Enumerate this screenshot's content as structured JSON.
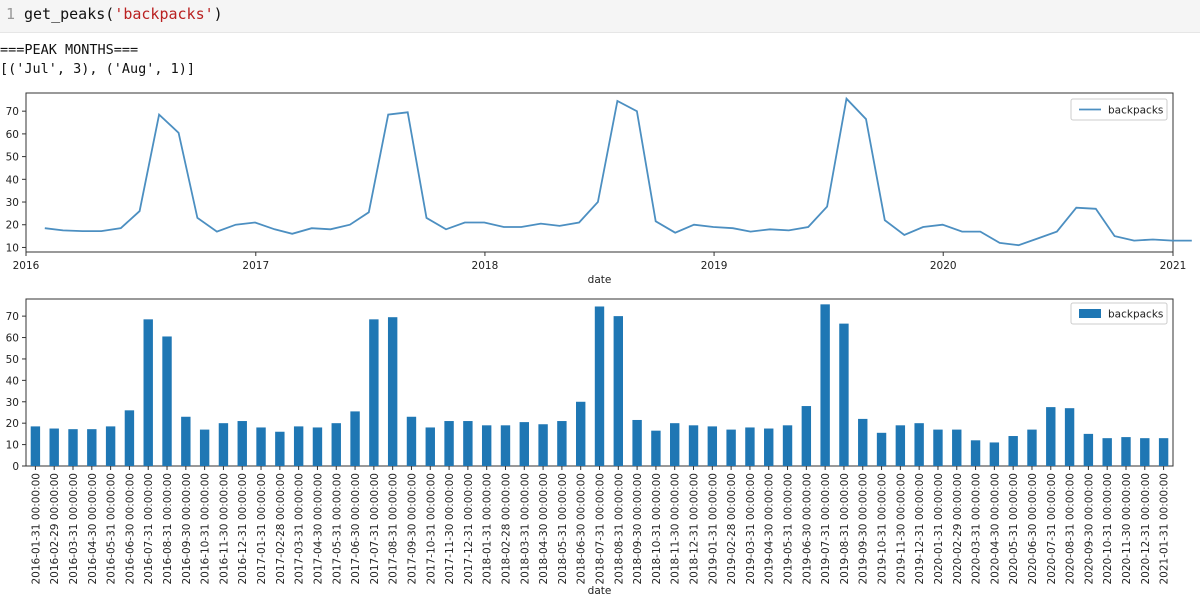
{
  "cell": {
    "line_number": "1",
    "code_fn": "get_peaks(",
    "code_arg": "'backpacks'",
    "code_close": ")"
  },
  "output": {
    "header": "===PEAK MONTHS===",
    "result": "[('Jul', 3), ('Aug', 1)]"
  },
  "colors": {
    "line": "#4c8fc1",
    "bar": "#1f77b4"
  },
  "chart_data": [
    {
      "type": "line",
      "xlabel": "date",
      "ylabel": "",
      "legend": [
        "backpacks"
      ],
      "legend_position": "top-right",
      "x_tick_labels": [
        "2016",
        "2017",
        "2018",
        "2019",
        "2020",
        "2021"
      ],
      "y_ticks": [
        10,
        20,
        30,
        40,
        50,
        60,
        70
      ],
      "ylim": [
        8,
        78
      ],
      "x": [
        "2016-01-31",
        "2016-02-29",
        "2016-03-31",
        "2016-04-30",
        "2016-05-31",
        "2016-06-30",
        "2016-07-31",
        "2016-08-31",
        "2016-09-30",
        "2016-10-31",
        "2016-11-30",
        "2016-12-31",
        "2017-01-31",
        "2017-02-28",
        "2017-03-31",
        "2017-04-30",
        "2017-05-31",
        "2017-06-30",
        "2017-07-31",
        "2017-08-31",
        "2017-09-30",
        "2017-10-31",
        "2017-11-30",
        "2017-12-31",
        "2018-01-31",
        "2018-02-28",
        "2018-03-31",
        "2018-04-30",
        "2018-05-31",
        "2018-06-30",
        "2018-07-31",
        "2018-08-31",
        "2018-09-30",
        "2018-10-31",
        "2018-11-30",
        "2018-12-31",
        "2019-01-31",
        "2019-02-28",
        "2019-03-31",
        "2019-04-30",
        "2019-05-31",
        "2019-06-30",
        "2019-07-31",
        "2019-08-31",
        "2019-09-30",
        "2019-10-31",
        "2019-11-30",
        "2019-12-31",
        "2020-01-31",
        "2020-02-29",
        "2020-03-31",
        "2020-04-30",
        "2020-05-31",
        "2020-06-30",
        "2020-07-31",
        "2020-08-31",
        "2020-09-30",
        "2020-10-31",
        "2020-11-30",
        "2020-12-31",
        "2021-01-31"
      ],
      "series": [
        {
          "name": "backpacks",
          "values": [
            18.5,
            17.5,
            17.2,
            17.2,
            18.5,
            26,
            68.5,
            60.5,
            23,
            17,
            20,
            21,
            18,
            16,
            18.5,
            18,
            20,
            25.5,
            68.5,
            69.5,
            23,
            18,
            21,
            21,
            19,
            19,
            20.5,
            19.5,
            21,
            30,
            74.5,
            70,
            21.5,
            16.5,
            20,
            19,
            18.5,
            17,
            18,
            17.5,
            19,
            28,
            75.5,
            66.5,
            22,
            15.5,
            19,
            20,
            17,
            17,
            12,
            11,
            14,
            17,
            27.5,
            27,
            15,
            13,
            13.5,
            13,
            13
          ]
        }
      ]
    },
    {
      "type": "bar",
      "xlabel": "date",
      "ylabel": "",
      "legend": [
        "backpacks"
      ],
      "legend_position": "top-right",
      "y_ticks": [
        0,
        10,
        20,
        30,
        40,
        50,
        60,
        70
      ],
      "ylim": [
        0,
        78
      ],
      "categories": [
        "2016-01-31 00:00:00",
        "2016-02-29 00:00:00",
        "2016-03-31 00:00:00",
        "2016-04-30 00:00:00",
        "2016-05-31 00:00:00",
        "2016-06-30 00:00:00",
        "2016-07-31 00:00:00",
        "2016-08-31 00:00:00",
        "2016-09-30 00:00:00",
        "2016-10-31 00:00:00",
        "2016-11-30 00:00:00",
        "2016-12-31 00:00:00",
        "2017-01-31 00:00:00",
        "2017-02-28 00:00:00",
        "2017-03-31 00:00:00",
        "2017-04-30 00:00:00",
        "2017-05-31 00:00:00",
        "2017-06-30 00:00:00",
        "2017-07-31 00:00:00",
        "2017-08-31 00:00:00",
        "2017-09-30 00:00:00",
        "2017-10-31 00:00:00",
        "2017-11-30 00:00:00",
        "2017-12-31 00:00:00",
        "2018-01-31 00:00:00",
        "2018-02-28 00:00:00",
        "2018-03-31 00:00:00",
        "2018-04-30 00:00:00",
        "2018-05-31 00:00:00",
        "2018-06-30 00:00:00",
        "2018-07-31 00:00:00",
        "2018-08-31 00:00:00",
        "2018-09-30 00:00:00",
        "2018-10-31 00:00:00",
        "2018-11-30 00:00:00",
        "2018-12-31 00:00:00",
        "2019-01-31 00:00:00",
        "2019-02-28 00:00:00",
        "2019-03-31 00:00:00",
        "2019-04-30 00:00:00",
        "2019-05-31 00:00:00",
        "2019-06-30 00:00:00",
        "2019-07-31 00:00:00",
        "2019-08-31 00:00:00",
        "2019-09-30 00:00:00",
        "2019-10-31 00:00:00",
        "2019-11-30 00:00:00",
        "2019-12-31 00:00:00",
        "2020-01-31 00:00:00",
        "2020-02-29 00:00:00",
        "2020-03-31 00:00:00",
        "2020-04-30 00:00:00",
        "2020-05-31 00:00:00",
        "2020-06-30 00:00:00",
        "2020-07-31 00:00:00",
        "2020-08-31 00:00:00",
        "2020-09-30 00:00:00",
        "2020-10-31 00:00:00",
        "2020-11-30 00:00:00",
        "2020-12-31 00:00:00",
        "2021-01-31 00:00:00"
      ],
      "series": [
        {
          "name": "backpacks",
          "values": [
            18.5,
            17.5,
            17.2,
            17.2,
            18.5,
            26,
            68.5,
            60.5,
            23,
            17,
            20,
            21,
            18,
            16,
            18.5,
            18,
            20,
            25.5,
            68.5,
            69.5,
            23,
            18,
            21,
            21,
            19,
            19,
            20.5,
            19.5,
            21,
            30,
            74.5,
            70,
            21.5,
            16.5,
            20,
            19,
            18.5,
            17,
            18,
            17.5,
            19,
            28,
            75.5,
            66.5,
            22,
            15.5,
            19,
            20,
            17,
            17,
            12,
            11,
            14,
            17,
            27.5,
            27,
            15,
            13,
            13.5,
            13,
            13
          ]
        }
      ]
    }
  ]
}
